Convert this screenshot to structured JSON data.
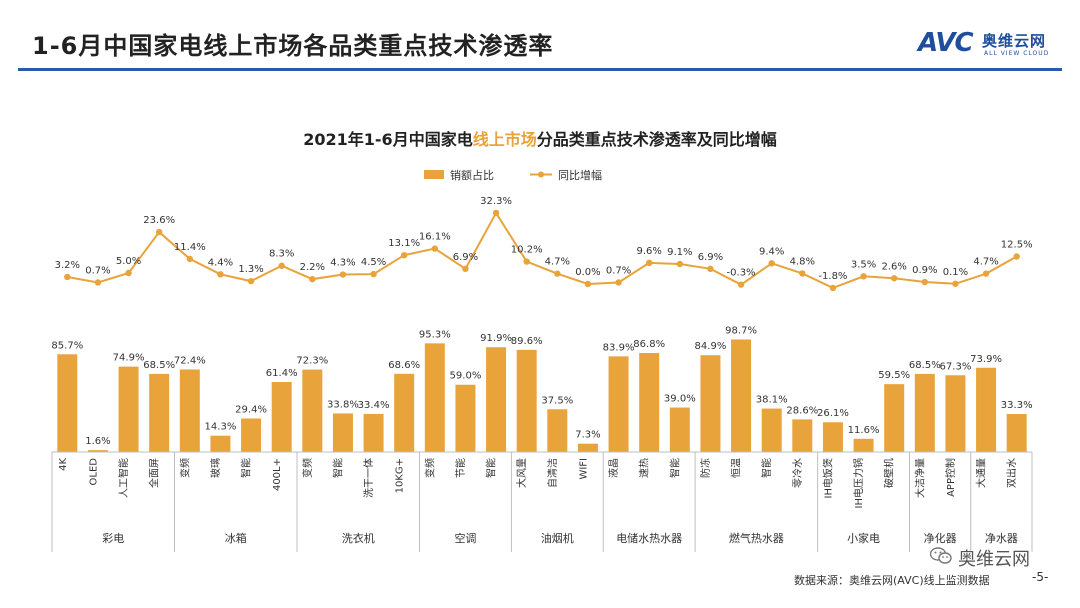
{
  "header": {
    "title": "1-6月中国家电线上市场各品类重点技术渗透率",
    "logo_mark": "AVC",
    "logo_cn": "奥维云网",
    "logo_en": "ALL VIEW CLOUD",
    "accent_color": "#2a5aa8"
  },
  "footer": {
    "source": "数据来源：奥维云网(AVC)线上监测数据",
    "page_number": "-5-",
    "wechat_account": "奥维云网",
    "wechat_icon": "wechat-icon"
  },
  "chart_data": {
    "type": "bar",
    "title_parts": [
      "2021年1-6月中国家电",
      "线上市场",
      "分品类重点技术渗透率及同比增幅"
    ],
    "title_highlight_color": "#e8a33a",
    "bar_color": "#e8a33a",
    "line_color": "#e8a33a",
    "legend": {
      "placement": "top-center",
      "bar_label": "销额占比",
      "line_label": "同比增幅"
    },
    "grid": false,
    "groups": [
      {
        "name": "彩电",
        "categories": [
          "4K",
          "OLED",
          "人工智能",
          "全面屏"
        ]
      },
      {
        "name": "冰箱",
        "categories": [
          "变频",
          "玻璃",
          "智能",
          "400L+"
        ]
      },
      {
        "name": "洗衣机",
        "categories": [
          "变频",
          "智能",
          "洗干一体",
          "10KG+"
        ]
      },
      {
        "name": "空调",
        "categories": [
          "变频",
          "节能",
          "智能"
        ]
      },
      {
        "name": "油烟机",
        "categories": [
          "大风量",
          "自清洁",
          "WIFI"
        ]
      },
      {
        "name": "电储水热水器",
        "categories": [
          "液晶",
          "速热",
          "智能"
        ]
      },
      {
        "name": "燃气热水器",
        "categories": [
          "防冻",
          "恒温",
          "智能",
          "零冷水"
        ]
      },
      {
        "name": "小家电",
        "categories": [
          "IH电饭煲",
          "IH电压力锅",
          "破壁机"
        ]
      },
      {
        "name": "净化器",
        "categories": [
          "大洁净量",
          "APP控制"
        ]
      },
      {
        "name": "净水器",
        "categories": [
          "大通量",
          "双出水"
        ]
      }
    ],
    "series": [
      {
        "name": "销额占比",
        "type": "bar",
        "unit": "%",
        "values": [
          85.7,
          1.6,
          74.9,
          68.5,
          72.4,
          14.3,
          29.4,
          61.4,
          72.3,
          33.8,
          33.4,
          68.6,
          95.3,
          59.0,
          91.9,
          89.6,
          37.5,
          7.3,
          83.9,
          86.8,
          39.0,
          84.9,
          98.7,
          38.1,
          28.6,
          26.1,
          11.6,
          59.5,
          68.5,
          67.3,
          73.9,
          33.3
        ],
        "labels": [
          "85.7%",
          "1.6%",
          "74.9%",
          "68.5%",
          "72.4%",
          "14.3%",
          "29.4%",
          "61.4%",
          "72.3%",
          "33.8%",
          "33.4%",
          "68.6%",
          "95.3%",
          "59.0%",
          "91.9%",
          "89.6%",
          "37.5%",
          "7.3%",
          "83.9%",
          "86.8%",
          "39.0%",
          "84.9%",
          "98.7%",
          "38.1%",
          "28.6%",
          "26.1%",
          "11.6%",
          "59.5%",
          "68.5%",
          "67.3%",
          "73.9%",
          "33.3%"
        ]
      },
      {
        "name": "同比增幅",
        "type": "line",
        "unit": "%",
        "values": [
          3.2,
          0.7,
          5.0,
          23.6,
          11.4,
          4.4,
          1.3,
          8.3,
          2.2,
          4.3,
          4.5,
          13.1,
          16.1,
          6.9,
          32.3,
          10.2,
          4.7,
          0.0,
          0.7,
          9.6,
          9.1,
          6.9,
          -0.3,
          9.4,
          4.8,
          -1.8,
          3.5,
          2.6,
          0.9,
          0.1,
          4.7,
          12.5
        ],
        "labels": [
          "3.2%",
          "0.7%",
          "5.0%",
          "23.6%",
          "11.4%",
          "4.4%",
          "1.3%",
          "8.3%",
          "2.2%",
          "4.3%",
          "4.5%",
          "13.1%",
          "16.1%",
          "6.9%",
          "32.3%",
          "10.2%",
          "4.7%",
          "0.0%",
          "0.7%",
          "9.6%",
          "9.1%",
          "6.9%",
          "-0.3%",
          "9.4%",
          "4.8%",
          "-1.8%",
          "3.5%",
          "2.6%",
          "0.9%",
          "0.1%",
          "4.7%",
          "12.5%"
        ]
      }
    ]
  }
}
